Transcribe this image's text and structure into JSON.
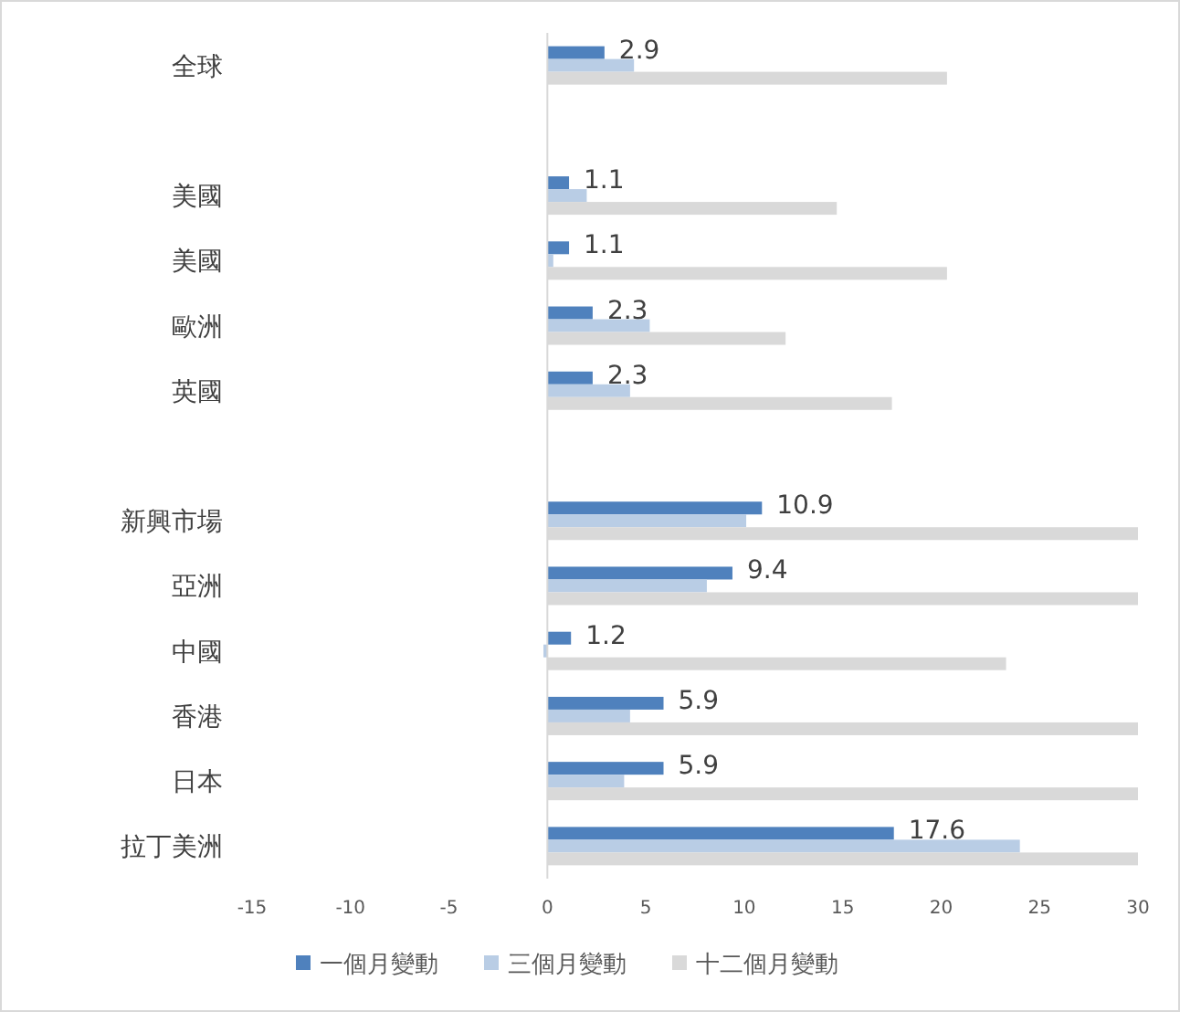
{
  "chart_data": {
    "type": "bar",
    "orientation": "horizontal",
    "categories": [
      "全球",
      null,
      "美國",
      "美國",
      "歐洲",
      "英國",
      null,
      "新興市場",
      "亞洲",
      "中國",
      "香港",
      "日本",
      "拉丁美洲"
    ],
    "series": [
      {
        "name": "一個月變動",
        "color": "#4f81bd",
        "values": [
          2.9,
          null,
          1.1,
          1.1,
          2.3,
          2.3,
          null,
          10.9,
          9.4,
          1.2,
          5.9,
          5.9,
          17.6
        ],
        "value_labels": [
          "2.9",
          null,
          "1.1",
          "1.1",
          "2.3",
          "2.3",
          null,
          "10.9",
          "9.4",
          "1.2",
          "5.9",
          "5.9",
          "17.6"
        ]
      },
      {
        "name": "三個月變動",
        "color": "#b9cde5",
        "values": [
          4.4,
          null,
          2.0,
          0.3,
          5.2,
          4.2,
          null,
          10.1,
          8.1,
          -0.2,
          4.2,
          3.9,
          24.0
        ]
      },
      {
        "name": "十二個月變動",
        "color": "#d9d9d9",
        "values": [
          20.3,
          null,
          14.7,
          20.3,
          12.1,
          17.5,
          null,
          30,
          30,
          23.3,
          30,
          30,
          30
        ]
      }
    ],
    "xlim": [
      -15,
      30
    ],
    "xticks": [
      -15,
      -10,
      -5,
      0,
      5,
      10,
      15,
      20,
      25,
      30
    ],
    "legend": "bottom"
  }
}
